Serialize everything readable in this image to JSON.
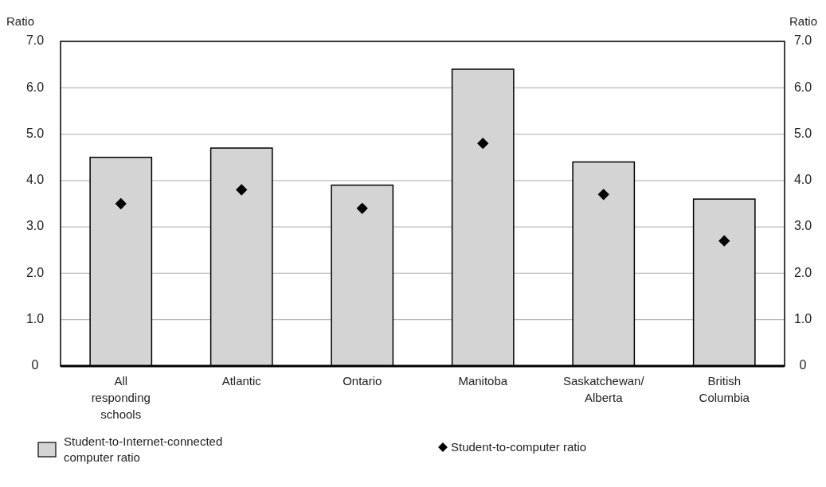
{
  "chart_data": {
    "type": "bar",
    "ylabel": "Ratio",
    "y2label": "Ratio",
    "categories": [
      "All responding schools",
      "Atlantic",
      "Ontario",
      "Manitoba",
      "Saskatchewan/ Alberta",
      "British Columbia"
    ],
    "series": [
      {
        "name": "Student-to-Internet-connected computer ratio",
        "color": "#d4d4d4",
        "values": [
          4.5,
          4.7,
          3.9,
          6.4,
          4.4,
          3.6
        ]
      },
      {
        "name": "Student-to-computer ratio",
        "type": "scatter",
        "color": "#000000",
        "marker": "diamond",
        "x": [
          "All responding schools",
          "Atlantic",
          "Ontario",
          "Manitoba",
          "Saskatchewan/ Alberta",
          "British Columbia"
        ],
        "values": [
          3.5,
          3.8,
          3.4,
          4.8,
          3.7,
          2.7
        ]
      }
    ],
    "ylim": [
      0,
      7
    ],
    "yticks": [
      0,
      {
        "value": 1,
        "label": "1.0"
      },
      {
        "value": 2,
        "label": "2.0"
      },
      {
        "value": 3,
        "label": "3.0"
      },
      {
        "value": 4,
        "label": "4.0"
      },
      {
        "value": 5,
        "label": "5.0"
      },
      {
        "value": 6,
        "label": "6.0"
      },
      {
        "value": 7,
        "label": "7.0"
      }
    ],
    "y2lim": [
      0,
      7
    ],
    "y2ticks": [
      0,
      {
        "value": 1,
        "label": "1.0"
      },
      {
        "value": 2,
        "label": "2.0"
      },
      {
        "value": 3,
        "label": "3.0"
      },
      {
        "value": 4,
        "label": "4.0"
      },
      {
        "value": 5,
        "label": "5.0"
      },
      {
        "value": 6,
        "label": "6.0"
      },
      {
        "value": 7,
        "label": "7.0"
      }
    ],
    "grid": "y",
    "legend": "bottom"
  }
}
